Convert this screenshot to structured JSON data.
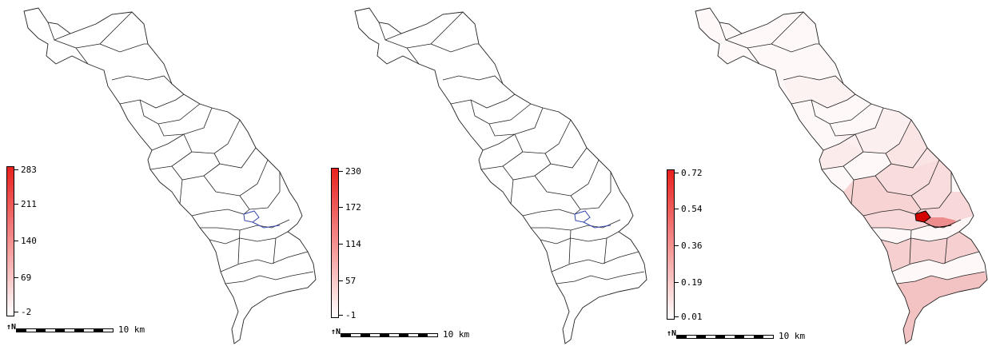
{
  "panels": [
    {
      "legend": {
        "colors": {
          "max": "#e8211e",
          "min": "#ffffff"
        },
        "labels": [
          "283",
          "211",
          "140",
          "69",
          "-2"
        ]
      },
      "scale_label": "10 km",
      "north_icon": "north-arrow-icon",
      "fills": "none"
    },
    {
      "legend": {
        "colors": {
          "max": "#e8211e",
          "min": "#ffffff"
        },
        "labels": [
          "230",
          "172",
          "114",
          "57",
          "-1"
        ]
      },
      "scale_label": "10 km",
      "north_icon": "north-arrow-icon",
      "fills": "none"
    },
    {
      "legend": {
        "colors": {
          "max": "#e8211e",
          "min": "#ffffff"
        },
        "labels": [
          "0.72",
          "0.54",
          "0.36",
          "0.19",
          "0.01"
        ]
      },
      "scale_label": "10 km",
      "north_icon": "north-arrow-icon",
      "fills": "choropleth"
    }
  ],
  "highlight_color": "#3344aa",
  "boundary_color": "#222222"
}
